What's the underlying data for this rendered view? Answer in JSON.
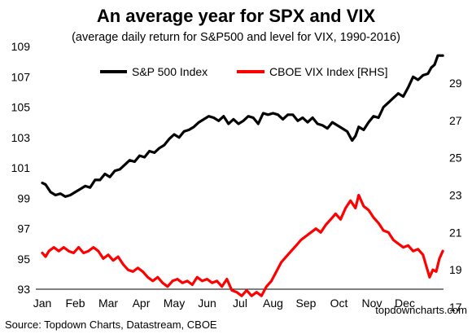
{
  "chart_data": {
    "type": "line",
    "title": "An average year for SPX and VIX",
    "subtitle": "(average daily return for S&P500 and level for VIX, 1990-2016)",
    "categories": [
      "Jan",
      "Feb",
      "Mar",
      "Apr",
      "May",
      "Jun",
      "Jul",
      "Aug",
      "Sep",
      "Oct",
      "Nov",
      "Dec"
    ],
    "x_range": [
      0,
      12
    ],
    "y_left": {
      "min": 93,
      "max": 109,
      "ticks": [
        93,
        95,
        97,
        99,
        101,
        103,
        105,
        107,
        109
      ]
    },
    "y_right": {
      "min": 17,
      "max": 30,
      "ticks": [
        17,
        19,
        21,
        23,
        25,
        27,
        29
      ]
    },
    "legend_position": "top-center",
    "grid": false,
    "series": [
      {
        "name": "S&P 500 Index",
        "axis": "left",
        "color": "#000000",
        "points": [
          [
            0.0,
            100.0
          ],
          [
            0.1,
            99.9
          ],
          [
            0.25,
            99.4
          ],
          [
            0.4,
            99.2
          ],
          [
            0.55,
            99.3
          ],
          [
            0.7,
            99.1
          ],
          [
            0.85,
            99.2
          ],
          [
            1.0,
            99.4
          ],
          [
            1.15,
            99.6
          ],
          [
            1.3,
            99.8
          ],
          [
            1.45,
            99.7
          ],
          [
            1.6,
            100.2
          ],
          [
            1.75,
            100.2
          ],
          [
            1.9,
            100.6
          ],
          [
            2.05,
            100.4
          ],
          [
            2.2,
            100.8
          ],
          [
            2.35,
            100.9
          ],
          [
            2.5,
            101.2
          ],
          [
            2.65,
            101.5
          ],
          [
            2.8,
            101.4
          ],
          [
            2.95,
            101.8
          ],
          [
            3.1,
            101.7
          ],
          [
            3.25,
            102.1
          ],
          [
            3.4,
            102.0
          ],
          [
            3.55,
            102.3
          ],
          [
            3.7,
            102.5
          ],
          [
            3.85,
            102.9
          ],
          [
            4.0,
            103.2
          ],
          [
            4.15,
            103.0
          ],
          [
            4.3,
            103.4
          ],
          [
            4.45,
            103.5
          ],
          [
            4.6,
            103.7
          ],
          [
            4.75,
            104.0
          ],
          [
            4.9,
            104.2
          ],
          [
            5.05,
            104.4
          ],
          [
            5.2,
            104.3
          ],
          [
            5.35,
            104.1
          ],
          [
            5.5,
            104.4
          ],
          [
            5.65,
            103.9
          ],
          [
            5.8,
            104.2
          ],
          [
            5.95,
            103.9
          ],
          [
            6.1,
            104.1
          ],
          [
            6.25,
            104.4
          ],
          [
            6.4,
            104.3
          ],
          [
            6.55,
            103.9
          ],
          [
            6.7,
            104.6
          ],
          [
            6.85,
            104.5
          ],
          [
            7.0,
            104.6
          ],
          [
            7.15,
            104.5
          ],
          [
            7.3,
            104.2
          ],
          [
            7.45,
            104.5
          ],
          [
            7.6,
            104.5
          ],
          [
            7.75,
            104.1
          ],
          [
            7.9,
            104.3
          ],
          [
            8.05,
            104.0
          ],
          [
            8.2,
            104.3
          ],
          [
            8.35,
            103.9
          ],
          [
            8.5,
            103.8
          ],
          [
            8.65,
            103.6
          ],
          [
            8.8,
            104.0
          ],
          [
            8.95,
            103.8
          ],
          [
            9.1,
            103.6
          ],
          [
            9.25,
            103.4
          ],
          [
            9.4,
            102.8
          ],
          [
            9.5,
            103.1
          ],
          [
            9.6,
            103.7
          ],
          [
            9.75,
            103.5
          ],
          [
            9.9,
            104.0
          ],
          [
            10.05,
            104.4
          ],
          [
            10.2,
            104.3
          ],
          [
            10.35,
            105.0
          ],
          [
            10.5,
            105.3
          ],
          [
            10.65,
            105.6
          ],
          [
            10.8,
            105.9
          ],
          [
            10.95,
            105.7
          ],
          [
            11.1,
            106.3
          ],
          [
            11.25,
            107.0
          ],
          [
            11.4,
            106.8
          ],
          [
            11.55,
            107.1
          ],
          [
            11.7,
            107.2
          ],
          [
            11.8,
            107.6
          ],
          [
            11.9,
            107.8
          ],
          [
            12.0,
            108.4
          ],
          [
            12.15,
            108.4
          ]
        ]
      },
      {
        "name": "CBOE VIX Index [RHS]",
        "axis": "right",
        "color": "#ff0000",
        "points": [
          [
            0.0,
            19.9
          ],
          [
            0.1,
            19.7
          ],
          [
            0.2,
            20.0
          ],
          [
            0.35,
            20.2
          ],
          [
            0.5,
            20.0
          ],
          [
            0.65,
            20.2
          ],
          [
            0.8,
            20.0
          ],
          [
            0.95,
            19.9
          ],
          [
            1.1,
            20.2
          ],
          [
            1.25,
            19.9
          ],
          [
            1.4,
            20.0
          ],
          [
            1.55,
            20.2
          ],
          [
            1.7,
            20.0
          ],
          [
            1.85,
            19.6
          ],
          [
            2.0,
            19.8
          ],
          [
            2.15,
            19.5
          ],
          [
            2.3,
            19.7
          ],
          [
            2.45,
            19.3
          ],
          [
            2.6,
            19.0
          ],
          [
            2.75,
            18.9
          ],
          [
            2.9,
            19.1
          ],
          [
            3.05,
            18.9
          ],
          [
            3.2,
            18.6
          ],
          [
            3.35,
            18.4
          ],
          [
            3.5,
            18.6
          ],
          [
            3.65,
            18.3
          ],
          [
            3.8,
            18.1
          ],
          [
            3.95,
            18.4
          ],
          [
            4.1,
            18.5
          ],
          [
            4.25,
            18.3
          ],
          [
            4.4,
            18.4
          ],
          [
            4.55,
            18.2
          ],
          [
            4.7,
            18.6
          ],
          [
            4.85,
            18.4
          ],
          [
            5.0,
            18.5
          ],
          [
            5.15,
            18.3
          ],
          [
            5.3,
            18.4
          ],
          [
            5.45,
            18.1
          ],
          [
            5.6,
            18.5
          ],
          [
            5.75,
            17.9
          ],
          [
            5.9,
            17.8
          ],
          [
            6.05,
            17.6
          ],
          [
            6.2,
            17.9
          ],
          [
            6.35,
            17.6
          ],
          [
            6.5,
            17.8
          ],
          [
            6.65,
            17.6
          ],
          [
            6.8,
            18.1
          ],
          [
            6.95,
            18.4
          ],
          [
            7.1,
            18.9
          ],
          [
            7.25,
            19.4
          ],
          [
            7.4,
            19.7
          ],
          [
            7.55,
            20.0
          ],
          [
            7.7,
            20.3
          ],
          [
            7.85,
            20.6
          ],
          [
            8.0,
            20.8
          ],
          [
            8.15,
            21.0
          ],
          [
            8.3,
            21.2
          ],
          [
            8.45,
            21.0
          ],
          [
            8.6,
            21.4
          ],
          [
            8.75,
            21.7
          ],
          [
            8.9,
            22.0
          ],
          [
            9.05,
            21.7
          ],
          [
            9.2,
            22.3
          ],
          [
            9.35,
            22.7
          ],
          [
            9.5,
            22.3
          ],
          [
            9.6,
            23.0
          ],
          [
            9.75,
            22.4
          ],
          [
            9.9,
            22.2
          ],
          [
            10.05,
            21.8
          ],
          [
            10.2,
            21.5
          ],
          [
            10.35,
            21.1
          ],
          [
            10.5,
            21.0
          ],
          [
            10.65,
            20.6
          ],
          [
            10.8,
            20.4
          ],
          [
            10.95,
            20.2
          ],
          [
            11.1,
            20.3
          ],
          [
            11.25,
            20.0
          ],
          [
            11.4,
            20.1
          ],
          [
            11.55,
            19.8
          ],
          [
            11.65,
            19.2
          ],
          [
            11.75,
            18.6
          ],
          [
            11.85,
            19.0
          ],
          [
            11.95,
            18.9
          ],
          [
            12.05,
            19.6
          ],
          [
            12.15,
            20.0
          ]
        ]
      }
    ]
  },
  "footer": {
    "source": "Source: Topdown Charts, Datastream, CBOE",
    "watermark": "topdowncharts.com"
  }
}
